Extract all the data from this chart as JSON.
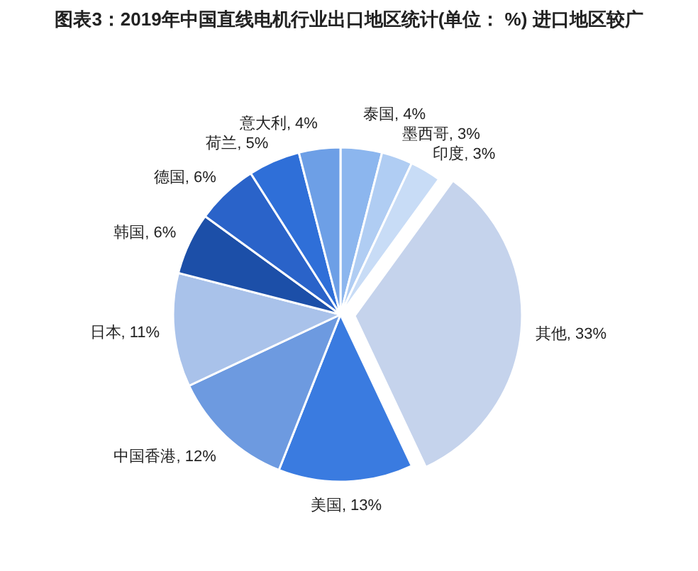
{
  "chart_data": {
    "type": "pie",
    "title": "图表3：2019年中国直线电机行业出口地区统计(单位： %) 进口地区较广",
    "categories": [
      "泰国",
      "墨西哥",
      "印度",
      "其他",
      "美国",
      "中国香港",
      "日本",
      "韩国",
      "德国",
      "荷兰",
      "意大利"
    ],
    "values": [
      4,
      3,
      3,
      33,
      13,
      12,
      11,
      6,
      6,
      5,
      4
    ],
    "colors": [
      "#8cb6ee",
      "#b0cdf3",
      "#c8dcf6",
      "#c5d3ec",
      "#3a7be0",
      "#6d9ae0",
      "#a9c2ea",
      "#1c4fa8",
      "#2a63c9",
      "#2f6fd8",
      "#6d9fe6"
    ],
    "value_labels": [
      "4%",
      "3%",
      "3%",
      "33%",
      "13%",
      "12%",
      "11%",
      "6%",
      "6%",
      "5%",
      "4%"
    ]
  }
}
